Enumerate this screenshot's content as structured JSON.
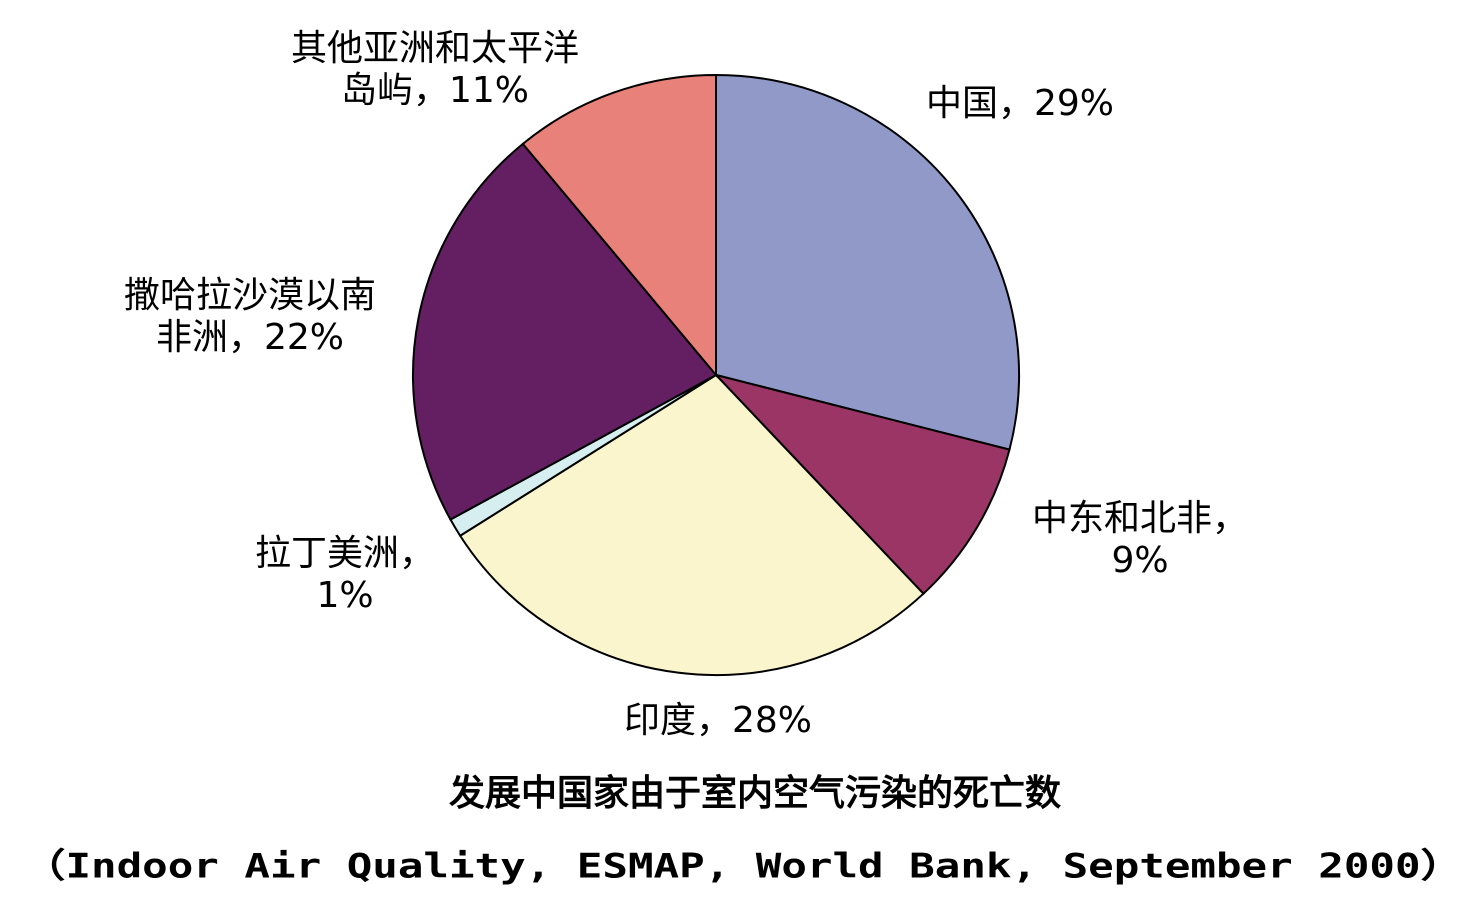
{
  "chart_data": {
    "type": "pie",
    "title": "发展中国家由于室内空气污染的死亡数",
    "subtitle": "（Indoor Air Quality, ESMAP, World Bank, September 2000）",
    "values": [
      29,
      9,
      28,
      1,
      22,
      11
    ],
    "value_labels": [
      [
        "中国，29%"
      ],
      [
        "中东和北非，",
        "9%"
      ],
      [
        "印度，28%"
      ],
      [
        "拉丁美洲，",
        "1%"
      ],
      [
        "撒哈拉沙漠以南",
        "非洲，22%"
      ],
      [
        "其他亚洲和太平洋",
        "岛屿，11%"
      ]
    ],
    "colors": [
      "#9099c8",
      "#9b3566",
      "#faf5cc",
      "#d6eef0",
      "#641f63",
      "#e8817a"
    ]
  }
}
